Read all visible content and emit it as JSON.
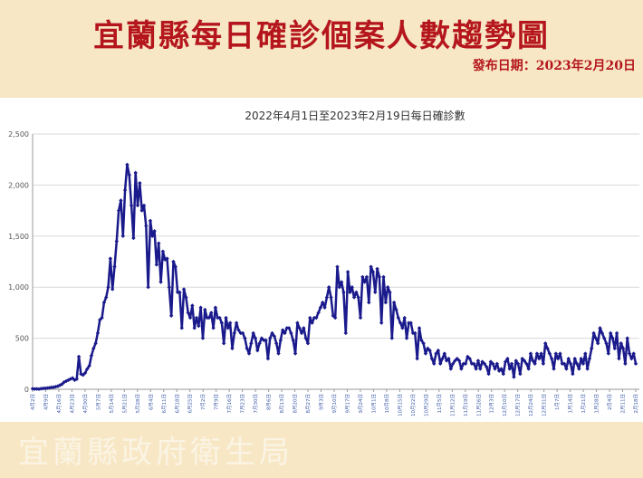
{
  "header": {
    "title": "宜蘭縣每日確診個案人數趨勢圖",
    "publish_date": "發布日期：2023年2月20日"
  },
  "footer": {
    "org_watermark": "宜蘭縣政府衛生局"
  },
  "colors": {
    "series": "#1a1a8c",
    "title": "#b5161d",
    "banner": "#f7e7c4"
  },
  "chart_data": {
    "type": "line",
    "title": "2022年4月1日至2023年2月19日每日確診數",
    "xlabel": "",
    "ylabel": "",
    "ylim": [
      0,
      2500
    ],
    "yticks": [
      0,
      500,
      1000,
      1500,
      2000,
      2500
    ],
    "ytick_labels": [
      "0",
      "500",
      "1,000",
      "1,500",
      "2,000",
      "2,500"
    ],
    "grid": "horizontal",
    "xtick_labels": [
      "4月2日",
      "4月9日",
      "4月16日",
      "4月23日",
      "4月30日",
      "5月7日",
      "5月14日",
      "5月21日",
      "5月28日",
      "6月4日",
      "6月11日",
      "6月18日",
      "6月25日",
      "7月2日",
      "7月9日",
      "7月16日",
      "7月23日",
      "7月30日",
      "8月6日",
      "8月13日",
      "8月20日",
      "8月27日",
      "9月3日",
      "9月10日",
      "9月17日",
      "9月24日",
      "10月1日",
      "10月8日",
      "10月15日",
      "10月22日",
      "10月29日",
      "11月5日",
      "11月12日",
      "11月19日",
      "11月26日",
      "12月3日",
      "12月10日",
      "12月17日",
      "12月24日",
      "12月31日",
      "1月7日",
      "1月14日",
      "1月21日",
      "1月28日",
      "2月4日",
      "2月11日",
      "2月18日"
    ],
    "series": [
      {
        "values": [
          5,
          3,
          4,
          2,
          6,
          8,
          10,
          12,
          15,
          18,
          20,
          25,
          30,
          40,
          50,
          70,
          80,
          90,
          100,
          110,
          90,
          100,
          320,
          150,
          140,
          160,
          200,
          230,
          330,
          400,
          450,
          550,
          680,
          700,
          850,
          900,
          1000,
          1280,
          980,
          1200,
          1450,
          1750,
          1850,
          1500,
          1950,
          2200,
          2100,
          1800,
          1480,
          2120,
          1800,
          2020,
          1750,
          1800,
          1600,
          1000,
          1650,
          1500,
          1550,
          1220,
          1430,
          1050,
          1350,
          1270,
          1280,
          1000,
          720,
          1250,
          1200,
          950,
          950,
          600,
          980,
          900,
          750,
          700,
          820,
          600,
          700,
          620,
          800,
          500,
          780,
          700,
          700,
          750,
          600,
          800,
          700,
          700,
          650,
          450,
          700,
          600,
          650,
          400,
          550,
          650,
          580,
          550,
          550,
          500,
          400,
          350,
          450,
          550,
          500,
          380,
          450,
          500,
          480,
          480,
          300,
          500,
          550,
          520,
          450,
          350,
          480,
          580,
          550,
          600,
          600,
          550,
          480,
          350,
          650,
          600,
          550,
          600,
          500,
          450,
          700,
          650,
          700,
          700,
          750,
          800,
          850,
          800,
          900,
          1000,
          900,
          720,
          700,
          1200,
          1000,
          1050,
          950,
          550,
          1150,
          950,
          1000,
          900,
          950,
          900,
          700,
          1100,
          1050,
          1100,
          850,
          1200,
          1150,
          950,
          1180,
          1100,
          650,
          1100,
          850,
          1000,
          950,
          500,
          850,
          780,
          700,
          650,
          600,
          700,
          500,
          650,
          650,
          550,
          550,
          300,
          600,
          480,
          450,
          350,
          400,
          380,
          300,
          250,
          350,
          380,
          250,
          300,
          350,
          280,
          300,
          200,
          250,
          280,
          300,
          280,
          200,
          250,
          250,
          320,
          300,
          250,
          250,
          200,
          280,
          200,
          270,
          250,
          220,
          150,
          270,
          250,
          200,
          250,
          180,
          200,
          150,
          270,
          300,
          200,
          250,
          120,
          280,
          250,
          150,
          300,
          280,
          250,
          200,
          350,
          280,
          250,
          350,
          300,
          350,
          250,
          450,
          400,
          350,
          300,
          200,
          350,
          300,
          350,
          250,
          250,
          200,
          300,
          250,
          150,
          300,
          250,
          200,
          300,
          250,
          350,
          200,
          300,
          400,
          550,
          500,
          450,
          600,
          550,
          500,
          450,
          350,
          550,
          500,
          400,
          550,
          300,
          450,
          400,
          250,
          500,
          350,
          300,
          350,
          250
        ]
      }
    ]
  }
}
